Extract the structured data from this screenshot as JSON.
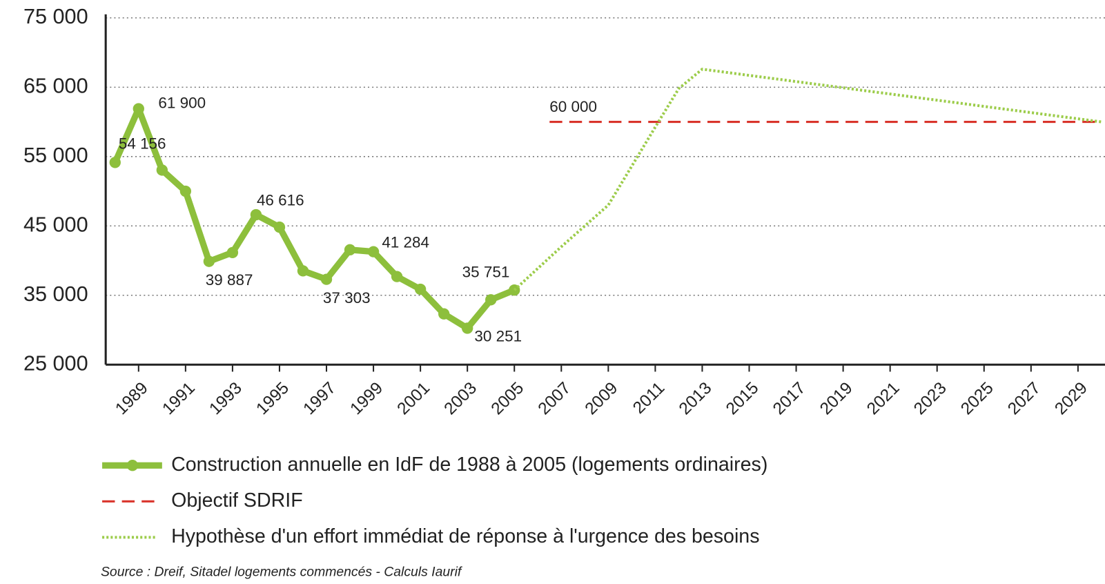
{
  "chart_data": {
    "type": "line",
    "xlim": [
      1987.6,
      2030.15
    ],
    "xticks": [
      1989,
      1991,
      1993,
      1995,
      1997,
      1999,
      2001,
      2003,
      2005,
      2007,
      2009,
      2011,
      2013,
      2015,
      2017,
      2019,
      2021,
      2023,
      2025,
      2027,
      2029
    ],
    "ylim": [
      25000,
      75000
    ],
    "yticks": [
      {
        "value": 25000,
        "label": "25 000"
      },
      {
        "value": 35000,
        "label": "35 000"
      },
      {
        "value": 45000,
        "label": "45 000"
      },
      {
        "value": 55000,
        "label": "55 000"
      },
      {
        "value": 65000,
        "label": "65 000"
      },
      {
        "value": 75000,
        "label": "75 000"
      }
    ],
    "grid": true,
    "series": [
      {
        "name": "Construction annuelle en IdF de 1988 à 2005 (logements ordinaires)",
        "color": "#8dbf3c",
        "style": "solid",
        "markers": true,
        "x": [
          1988,
          1989,
          1990,
          1991,
          1992,
          1993,
          1994,
          1995,
          1996,
          1997,
          1998,
          1999,
          2000,
          2001,
          2002,
          2003,
          2004,
          2005
        ],
        "values": [
          54156,
          61900,
          53050,
          50000,
          39887,
          41160,
          46616,
          44820,
          38520,
          37303,
          41560,
          41284,
          37700,
          35870,
          32320,
          30251,
          34350,
          35751
        ],
        "value_labels": [
          "54 156",
          "61 900",
          null,
          null,
          "39 887",
          null,
          "46 616",
          null,
          null,
          "37 303",
          null,
          "41 284",
          null,
          null,
          null,
          "30 251",
          null,
          "35 751"
        ]
      },
      {
        "name": "Objectif SDRIF",
        "color": "#d9342b",
        "style": "dashed",
        "markers": false,
        "x": [
          2006.5,
          2030
        ],
        "values": [
          60000,
          60000
        ],
        "value_labels": [
          "60 000",
          null
        ]
      },
      {
        "name": "Hypothèse d'un effort immédiat de réponse à l'urgence des besoins",
        "color": "#9ccc4a",
        "style": "dotted",
        "markers": false,
        "x": [
          2005,
          2007,
          2009,
          2011,
          2012,
          2013,
          2030
        ],
        "values": [
          35751,
          42000,
          48000,
          59250,
          64800,
          67600,
          60000
        ]
      }
    ],
    "source": "Source : Dreif, Sitadel logements commencés - Calculs Iaurif"
  }
}
